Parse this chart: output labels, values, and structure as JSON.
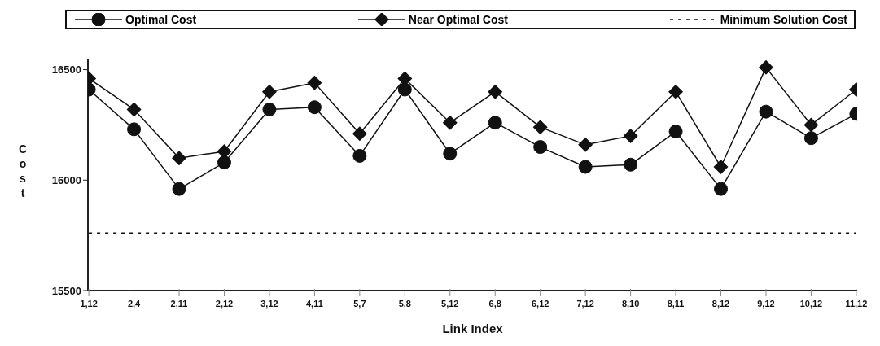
{
  "chart_data": {
    "type": "line",
    "xlabel": "Link Index",
    "ylabel": "Cost",
    "categories": [
      "1,12",
      "2,4",
      "2,11",
      "2,12",
      "3,12",
      "4,11",
      "5,7",
      "5,8",
      "5,12",
      "6,8",
      "6,12",
      "7,12",
      "8,10",
      "8,11",
      "8,12",
      "9,12",
      "10,12",
      "11,12"
    ],
    "series": [
      {
        "name": "Optimal Cost",
        "color": "#111111",
        "marker": "circle",
        "line_style": "solid",
        "values": [
          16410,
          16230,
          15960,
          16080,
          16320,
          16330,
          16110,
          16410,
          16120,
          16260,
          16150,
          16060,
          16070,
          16220,
          15960,
          16310,
          16190,
          16300
        ]
      },
      {
        "name": "Near Optimal Cost",
        "color": "#111111",
        "marker": "diamond",
        "line_style": "solid",
        "values": [
          16460,
          16320,
          16100,
          16130,
          16400,
          16440,
          16210,
          16460,
          16260,
          16400,
          16240,
          16160,
          16200,
          16400,
          16060,
          16510,
          16250,
          16410
        ]
      },
      {
        "name": "Minimum Solution Cost",
        "color": "#111111",
        "marker": "none",
        "line_style": "dashed",
        "values": [
          15760,
          15760,
          15760,
          15760,
          15760,
          15760,
          15760,
          15760,
          15760,
          15760,
          15760,
          15760,
          15760,
          15760,
          15760,
          15760,
          15760,
          15760
        ]
      }
    ],
    "ylim": [
      15500,
      16550
    ],
    "yticks": [
      15500,
      16000,
      16500
    ],
    "grid": false,
    "legend": "top"
  }
}
